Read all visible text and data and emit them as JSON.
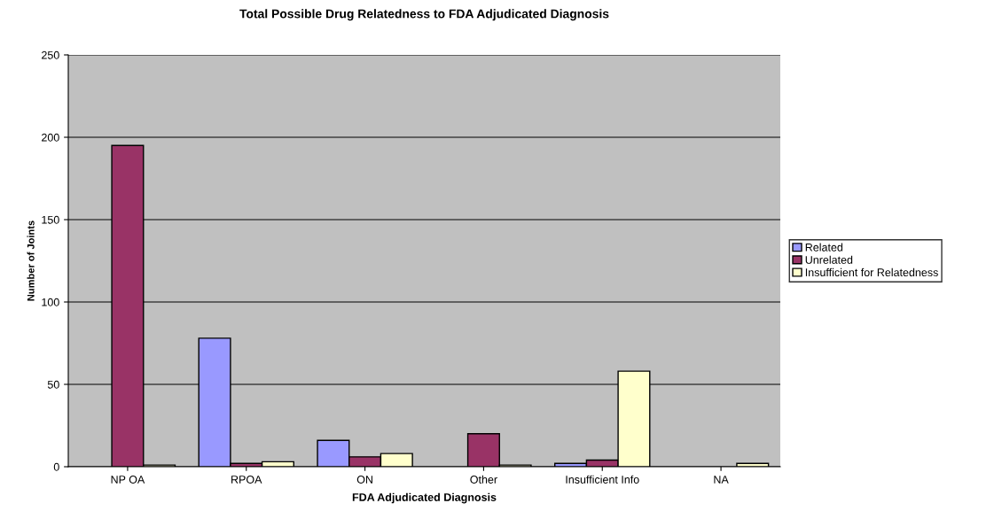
{
  "chart_data": {
    "type": "bar",
    "title": "Total Possible Drug Relatedness to FDA Adjudicated Diagnosis",
    "xlabel": "FDA Adjudicated Diagnosis",
    "ylabel": "Number of Joints",
    "categories": [
      "NP OA",
      "RPOA",
      "ON",
      "Other",
      "Insufficient Info",
      "NA"
    ],
    "series": [
      {
        "name": "Related",
        "color": "#9999ff",
        "values": [
          0,
          78,
          16,
          0,
          2,
          0
        ]
      },
      {
        "name": "Unrelated",
        "color": "#993366",
        "values": [
          195,
          2,
          6,
          20,
          4,
          0
        ]
      },
      {
        "name": "Insufficient for Relatedness",
        "color": "#ffffcc",
        "values": [
          1,
          3,
          8,
          1,
          58,
          2
        ]
      }
    ],
    "ylim": [
      0,
      250
    ],
    "yticks": [
      0,
      50,
      100,
      150,
      200,
      250
    ],
    "grid": "y",
    "legend": "right"
  }
}
